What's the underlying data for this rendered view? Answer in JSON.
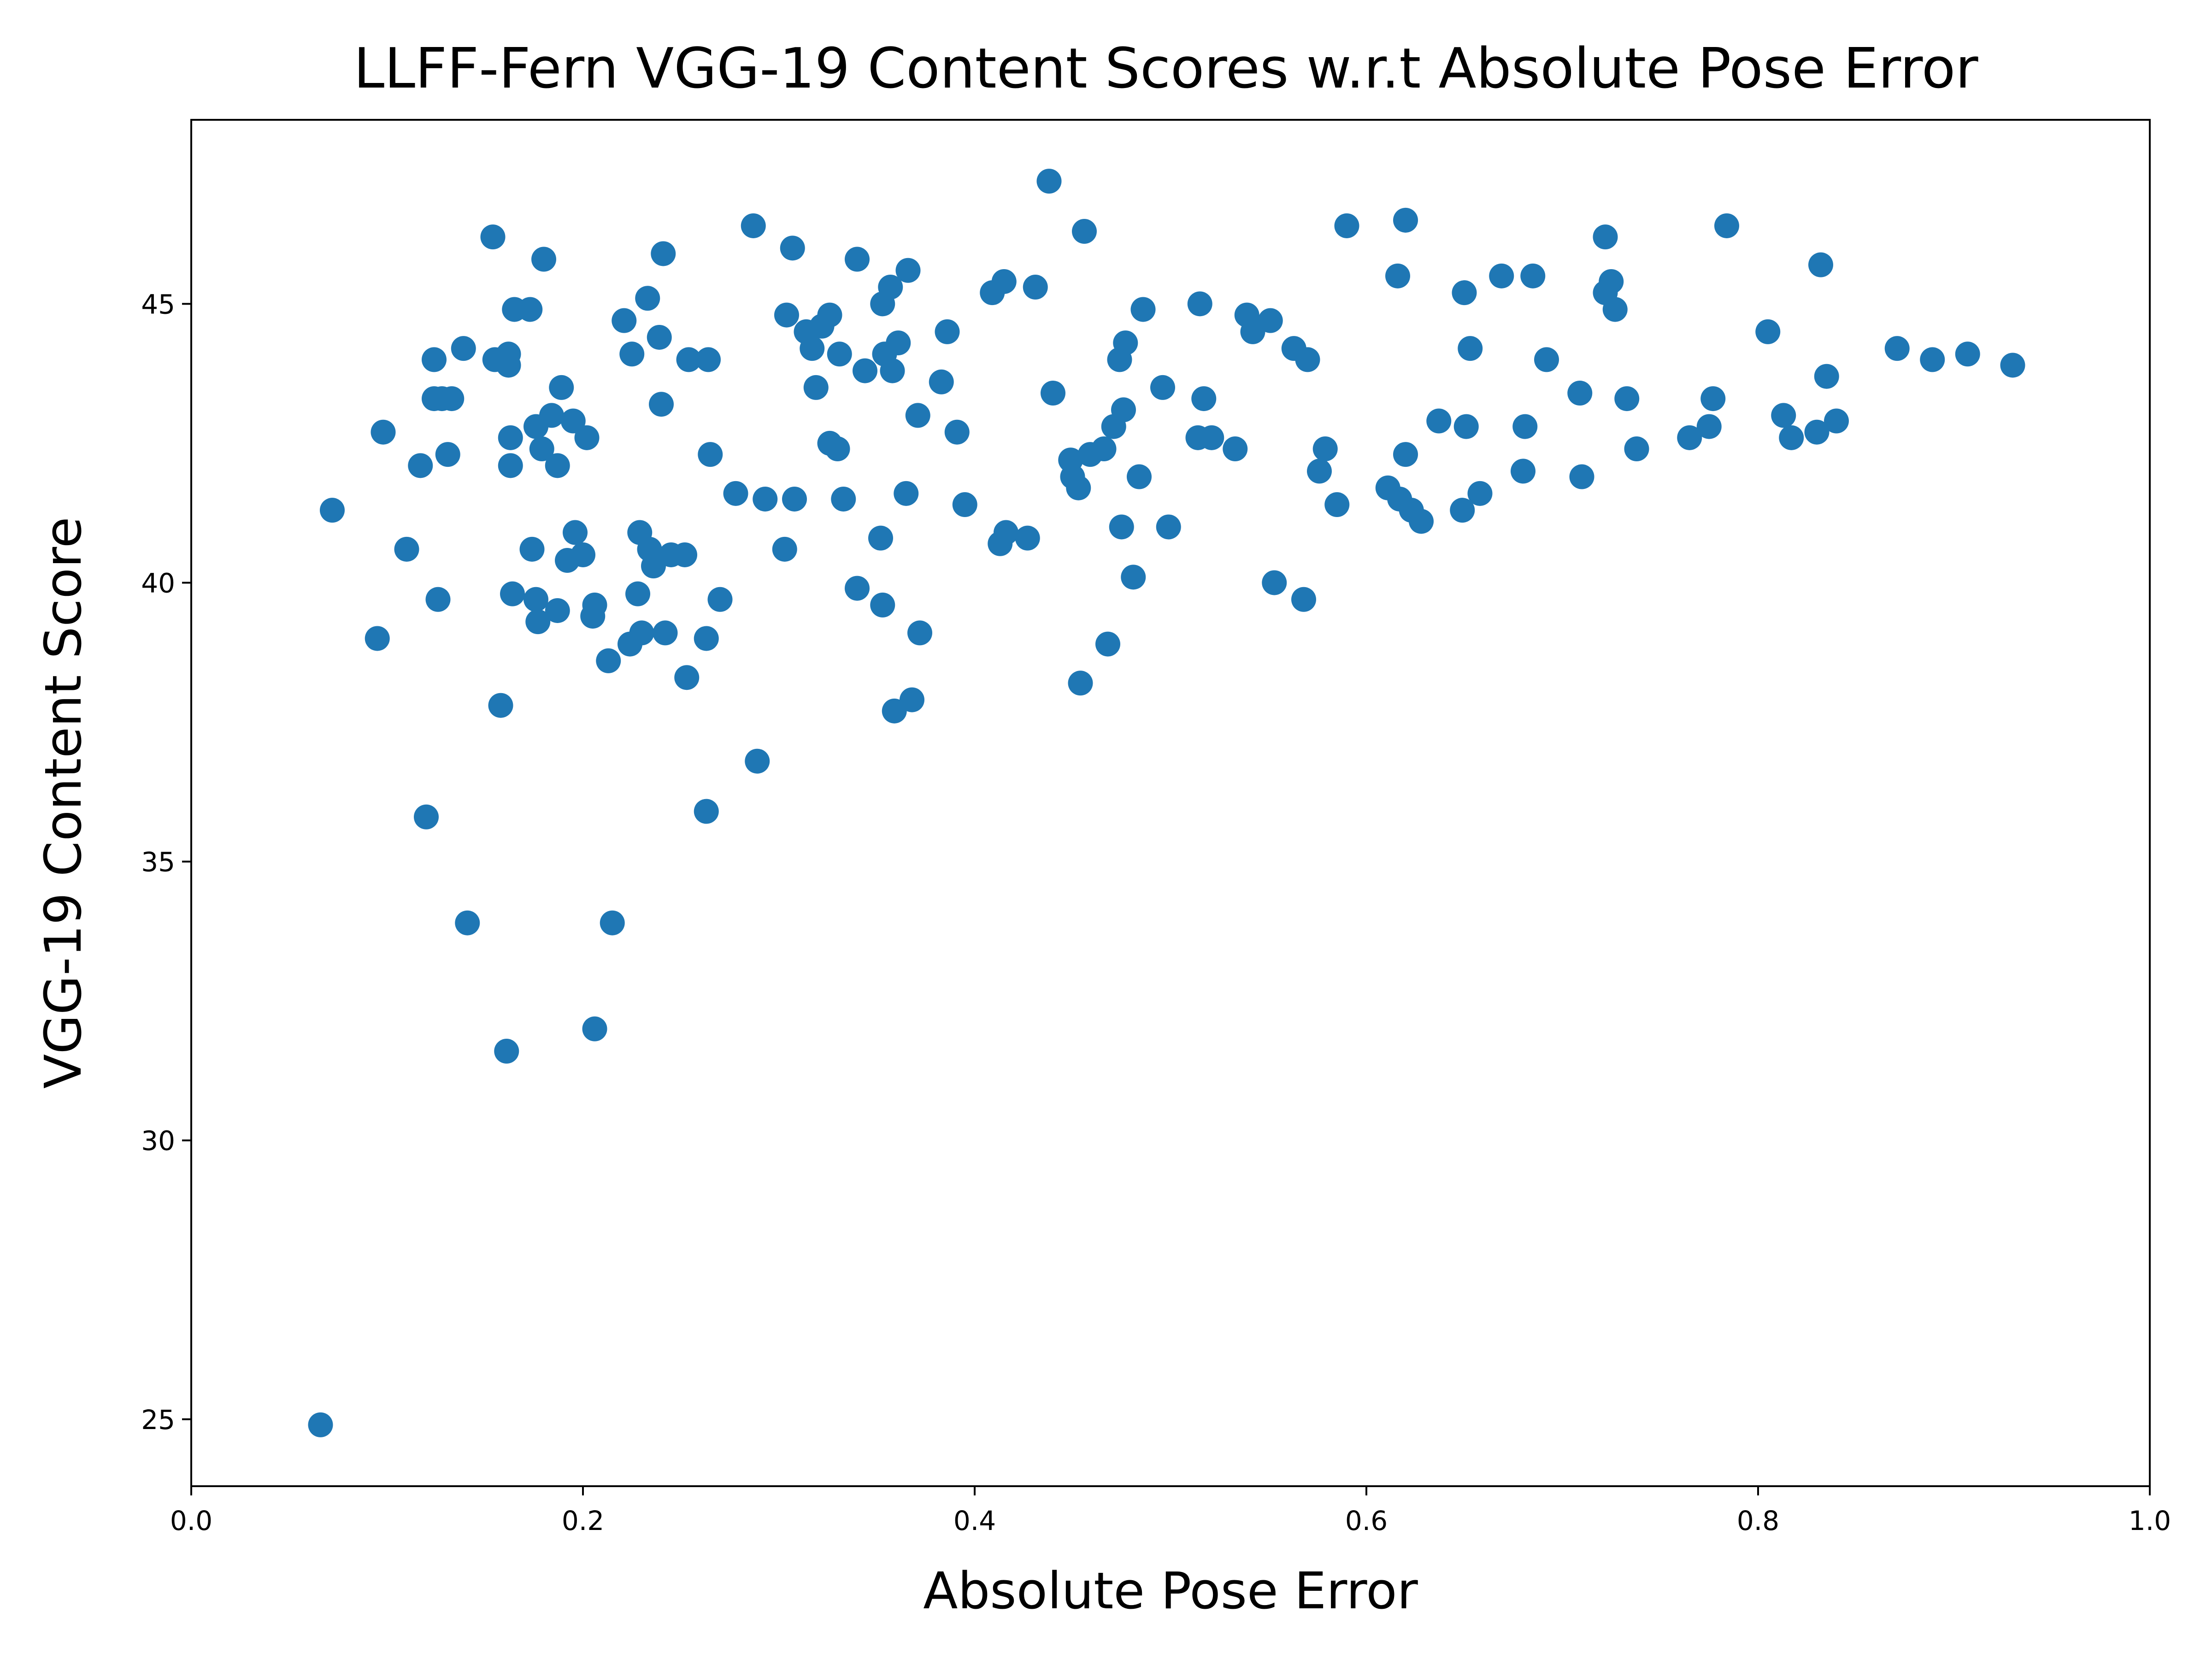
{
  "chart_data": {
    "type": "scatter",
    "title": "LLFF-Fern VGG-19 Content Scores w.r.t Absolute Pose Error",
    "xlabel": "Absolute Pose Error",
    "ylabel": "VGG-19 Content Score",
    "xlim": [
      0.0,
      1.0
    ],
    "ylim": [
      23.8,
      48.3
    ],
    "x_ticks": [
      0.0,
      0.2,
      0.4,
      0.6,
      0.8,
      1.0
    ],
    "x_tick_labels": [
      "0.0",
      "0.2",
      "0.4",
      "0.6",
      "0.8",
      "1.0"
    ],
    "y_ticks": [
      25,
      30,
      35,
      40,
      45
    ],
    "y_tick_labels": [
      "25",
      "30",
      "35",
      "40",
      "45"
    ],
    "grid": false,
    "marker_color": "#1f77b4",
    "series": [
      {
        "points": [
          [
            0.066,
            24.9
          ],
          [
            0.072,
            41.3
          ],
          [
            0.095,
            39.0
          ],
          [
            0.098,
            42.7
          ],
          [
            0.11,
            40.6
          ],
          [
            0.117,
            42.1
          ],
          [
            0.12,
            35.8
          ],
          [
            0.124,
            43.3
          ],
          [
            0.124,
            44.0
          ],
          [
            0.126,
            39.7
          ],
          [
            0.128,
            43.3
          ],
          [
            0.131,
            42.3
          ],
          [
            0.133,
            43.3
          ],
          [
            0.139,
            44.2
          ],
          [
            0.141,
            33.9
          ],
          [
            0.154,
            46.2
          ],
          [
            0.155,
            44.0
          ],
          [
            0.158,
            37.8
          ],
          [
            0.161,
            31.6
          ],
          [
            0.162,
            43.9
          ],
          [
            0.162,
            44.1
          ],
          [
            0.163,
            42.6
          ],
          [
            0.163,
            42.1
          ],
          [
            0.164,
            39.8
          ],
          [
            0.165,
            44.9
          ],
          [
            0.173,
            44.9
          ],
          [
            0.174,
            40.6
          ],
          [
            0.176,
            42.8
          ],
          [
            0.176,
            39.7
          ],
          [
            0.177,
            39.3
          ],
          [
            0.179,
            42.4
          ],
          [
            0.18,
            45.8
          ],
          [
            0.184,
            43.0
          ],
          [
            0.187,
            42.1
          ],
          [
            0.187,
            39.5
          ],
          [
            0.189,
            43.5
          ],
          [
            0.192,
            40.4
          ],
          [
            0.195,
            42.9
          ],
          [
            0.196,
            40.9
          ],
          [
            0.2,
            40.5
          ],
          [
            0.202,
            42.6
          ],
          [
            0.205,
            39.4
          ],
          [
            0.206,
            39.6
          ],
          [
            0.206,
            32.0
          ],
          [
            0.213,
            38.6
          ],
          [
            0.215,
            33.9
          ],
          [
            0.221,
            44.7
          ],
          [
            0.224,
            38.9
          ],
          [
            0.225,
            44.1
          ],
          [
            0.228,
            39.8
          ],
          [
            0.229,
            40.9
          ],
          [
            0.23,
            39.1
          ],
          [
            0.233,
            45.1
          ],
          [
            0.234,
            40.6
          ],
          [
            0.236,
            40.3
          ],
          [
            0.239,
            44.4
          ],
          [
            0.24,
            43.2
          ],
          [
            0.241,
            45.9
          ],
          [
            0.242,
            39.1
          ],
          [
            0.245,
            40.5
          ],
          [
            0.252,
            40.5
          ],
          [
            0.253,
            38.3
          ],
          [
            0.254,
            44.0
          ],
          [
            0.263,
            39.0
          ],
          [
            0.263,
            35.9
          ],
          [
            0.264,
            44.0
          ],
          [
            0.265,
            42.3
          ],
          [
            0.27,
            39.7
          ],
          [
            0.278,
            41.6
          ],
          [
            0.287,
            46.4
          ],
          [
            0.289,
            36.8
          ],
          [
            0.293,
            41.5
          ],
          [
            0.303,
            40.6
          ],
          [
            0.304,
            44.8
          ],
          [
            0.307,
            46.0
          ],
          [
            0.308,
            41.5
          ],
          [
            0.314,
            44.5
          ],
          [
            0.317,
            44.2
          ],
          [
            0.319,
            43.5
          ],
          [
            0.322,
            44.6
          ],
          [
            0.326,
            42.5
          ],
          [
            0.326,
            44.8
          ],
          [
            0.33,
            42.4
          ],
          [
            0.331,
            44.1
          ],
          [
            0.333,
            41.5
          ],
          [
            0.34,
            45.8
          ],
          [
            0.34,
            39.9
          ],
          [
            0.344,
            43.8
          ],
          [
            0.352,
            40.8
          ],
          [
            0.353,
            45.0
          ],
          [
            0.353,
            39.6
          ],
          [
            0.354,
            44.1
          ],
          [
            0.357,
            45.3
          ],
          [
            0.358,
            43.8
          ],
          [
            0.359,
            37.7
          ],
          [
            0.361,
            44.3
          ],
          [
            0.365,
            41.6
          ],
          [
            0.366,
            45.6
          ],
          [
            0.368,
            37.9
          ],
          [
            0.371,
            43.0
          ],
          [
            0.372,
            39.1
          ],
          [
            0.383,
            43.6
          ],
          [
            0.386,
            44.5
          ],
          [
            0.391,
            42.7
          ],
          [
            0.395,
            41.4
          ],
          [
            0.409,
            45.2
          ],
          [
            0.413,
            40.7
          ],
          [
            0.415,
            45.4
          ],
          [
            0.416,
            40.9
          ],
          [
            0.427,
            40.8
          ],
          [
            0.431,
            45.3
          ],
          [
            0.438,
            47.2
          ],
          [
            0.44,
            43.4
          ],
          [
            0.449,
            42.2
          ],
          [
            0.45,
            41.9
          ],
          [
            0.453,
            41.7
          ],
          [
            0.454,
            38.2
          ],
          [
            0.456,
            46.3
          ],
          [
            0.459,
            42.3
          ],
          [
            0.466,
            42.4
          ],
          [
            0.468,
            38.9
          ],
          [
            0.471,
            42.8
          ],
          [
            0.474,
            44.0
          ],
          [
            0.475,
            41.0
          ],
          [
            0.476,
            43.1
          ],
          [
            0.477,
            44.3
          ],
          [
            0.481,
            40.1
          ],
          [
            0.484,
            41.9
          ],
          [
            0.486,
            44.9
          ],
          [
            0.496,
            43.5
          ],
          [
            0.499,
            41.0
          ],
          [
            0.514,
            42.6
          ],
          [
            0.515,
            45.0
          ],
          [
            0.517,
            43.3
          ],
          [
            0.521,
            42.6
          ],
          [
            0.533,
            42.4
          ],
          [
            0.539,
            44.8
          ],
          [
            0.542,
            44.5
          ],
          [
            0.551,
            44.7
          ],
          [
            0.553,
            40.0
          ],
          [
            0.563,
            44.2
          ],
          [
            0.568,
            39.7
          ],
          [
            0.57,
            44.0
          ],
          [
            0.576,
            42.0
          ],
          [
            0.579,
            42.4
          ],
          [
            0.585,
            41.4
          ],
          [
            0.59,
            46.4
          ],
          [
            0.611,
            41.7
          ],
          [
            0.616,
            45.5
          ],
          [
            0.617,
            41.5
          ],
          [
            0.62,
            46.5
          ],
          [
            0.62,
            42.3
          ],
          [
            0.623,
            41.3
          ],
          [
            0.628,
            41.1
          ],
          [
            0.637,
            42.9
          ],
          [
            0.649,
            41.3
          ],
          [
            0.65,
            45.2
          ],
          [
            0.651,
            42.8
          ],
          [
            0.653,
            44.2
          ],
          [
            0.658,
            41.6
          ],
          [
            0.669,
            45.5
          ],
          [
            0.68,
            42.0
          ],
          [
            0.681,
            42.8
          ],
          [
            0.685,
            45.5
          ],
          [
            0.692,
            44.0
          ],
          [
            0.709,
            43.4
          ],
          [
            0.71,
            41.9
          ],
          [
            0.722,
            46.2
          ],
          [
            0.722,
            45.2
          ],
          [
            0.725,
            45.4
          ],
          [
            0.727,
            44.9
          ],
          [
            0.733,
            43.3
          ],
          [
            0.738,
            42.4
          ],
          [
            0.765,
            42.6
          ],
          [
            0.775,
            42.8
          ],
          [
            0.777,
            43.3
          ],
          [
            0.784,
            46.4
          ],
          [
            0.805,
            44.5
          ],
          [
            0.813,
            43.0
          ],
          [
            0.817,
            42.6
          ],
          [
            0.83,
            42.7
          ],
          [
            0.832,
            45.7
          ],
          [
            0.835,
            43.7
          ],
          [
            0.84,
            42.9
          ],
          [
            0.871,
            44.2
          ],
          [
            0.889,
            44.0
          ],
          [
            0.907,
            44.1
          ],
          [
            0.93,
            43.9
          ]
        ]
      }
    ]
  }
}
